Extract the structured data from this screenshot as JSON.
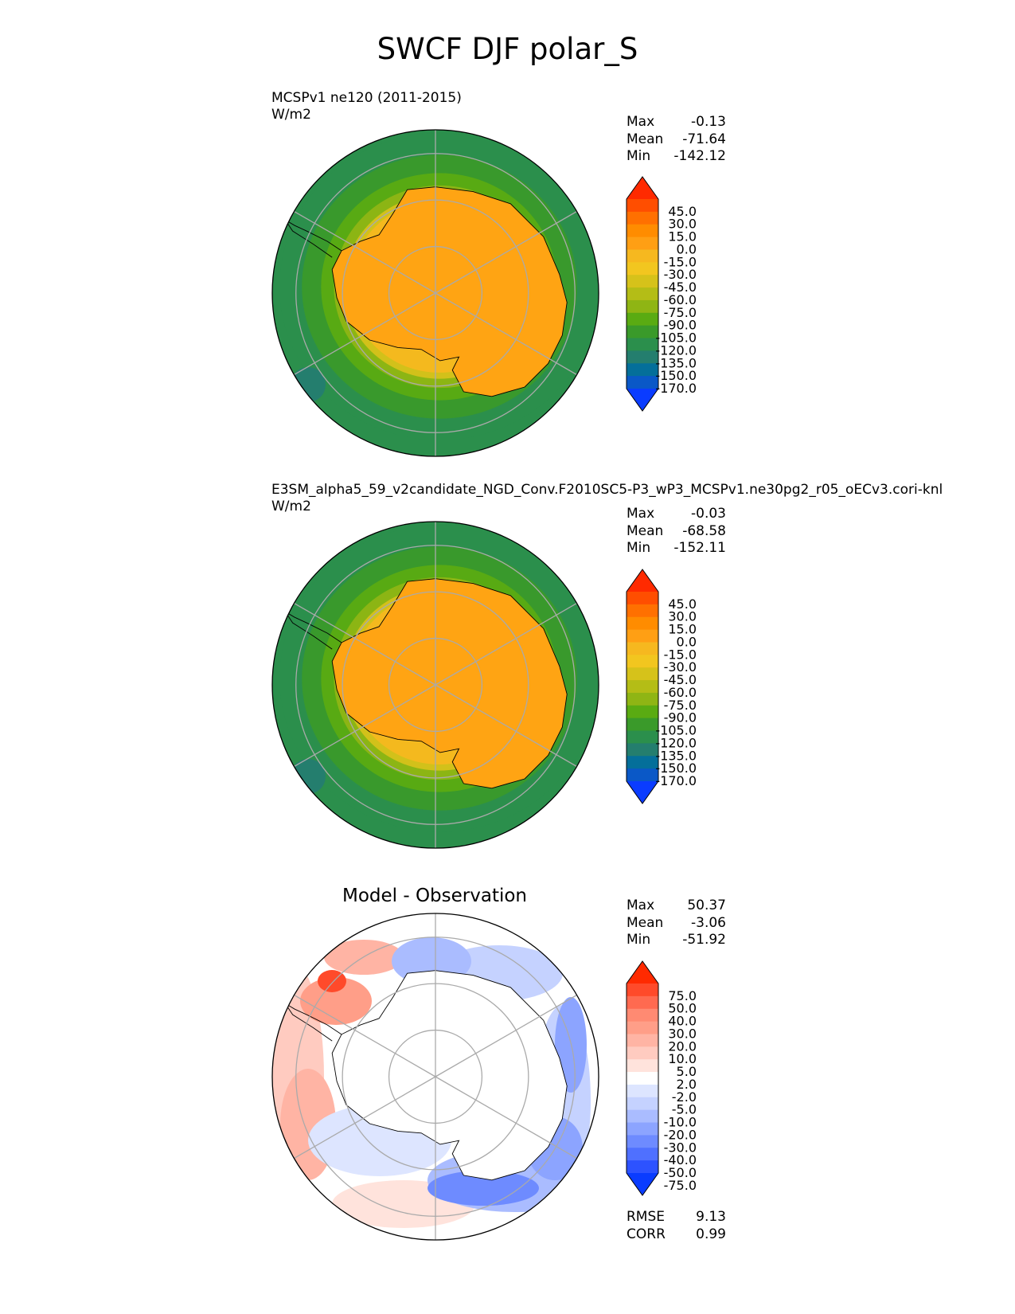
{
  "figure": {
    "title": "SWCF DJF polar_S"
  },
  "panels": [
    {
      "subtitle": "MCSPv1 ne120 (2011-2015)",
      "units": "W/m2",
      "stats": [
        {
          "label": "Max",
          "value": "-0.13"
        },
        {
          "label": "Mean",
          "value": "-71.64"
        },
        {
          "label": "Min",
          "value": "-142.12"
        }
      ]
    },
    {
      "subtitle": "E3SM_alpha5_59_v2candidate_NGD_Conv.F2010SC5-P3_wP3_MCSPv1.ne30pg2_r05_oECv3.cori-knl",
      "units": "W/m2",
      "stats": [
        {
          "label": "Max",
          "value": "-0.03"
        },
        {
          "label": "Mean",
          "value": "-68.58"
        },
        {
          "label": "Min",
          "value": "-152.11"
        }
      ]
    },
    {
      "title": "Model - Observation",
      "stats": [
        {
          "label": "Max",
          "value": "50.37"
        },
        {
          "label": "Mean",
          "value": "-3.06"
        },
        {
          "label": "Min",
          "value": "-51.92"
        }
      ],
      "metrics": [
        {
          "label": "RMSE",
          "value": "9.13"
        },
        {
          "label": "CORR",
          "value": "0.99"
        }
      ]
    }
  ],
  "chart_data": [
    {
      "type": "heatmap",
      "projection": "south polar stereographic",
      "title": "MCSPv1 ne120 (2011-2015)",
      "units": "W/m2",
      "colorbar_levels": [
        "45.0",
        "30.0",
        "15.0",
        "0.0",
        "-15.0",
        "-30.0",
        "-45.0",
        "-60.0",
        "-75.0",
        "-90.0",
        "-105.0",
        "-120.0",
        "-135.0",
        "-150.0",
        "-170.0"
      ],
      "colors": [
        "#ff2a00",
        "#ff4e00",
        "#ff7000",
        "#ff8c00",
        "#ff9f14",
        "#f6b81f",
        "#f2c61f",
        "#d6c21a",
        "#b4bd16",
        "#8fb514",
        "#5aab12",
        "#3a9a2a",
        "#2b8f4c",
        "#247e6e",
        "#046f9a",
        "#0a58c7",
        "#0a3cff"
      ],
      "stats": {
        "max": -0.13,
        "mean": -71.64,
        "min": -142.12
      }
    },
    {
      "type": "heatmap",
      "projection": "south polar stereographic",
      "title": "E3SM_alpha5_59_v2candidate_NGD_Conv.F2010SC5-P3_wP3_MCSPv1.ne30pg2_r05_oECv3.cori-knl",
      "units": "W/m2",
      "colorbar_levels": [
        "45.0",
        "30.0",
        "15.0",
        "0.0",
        "-15.0",
        "-30.0",
        "-45.0",
        "-60.0",
        "-75.0",
        "-90.0",
        "-105.0",
        "-120.0",
        "-135.0",
        "-150.0",
        "-170.0"
      ],
      "colors": [
        "#ff2a00",
        "#ff4e00",
        "#ff7000",
        "#ff8c00",
        "#ff9f14",
        "#f6b81f",
        "#f2c61f",
        "#d6c21a",
        "#b4bd16",
        "#8fb514",
        "#5aab12",
        "#3a9a2a",
        "#2b8f4c",
        "#247e6e",
        "#046f9a",
        "#0a58c7",
        "#0a3cff"
      ],
      "stats": {
        "max": -0.03,
        "mean": -68.58,
        "min": -152.11
      }
    },
    {
      "type": "heatmap",
      "projection": "south polar stereographic",
      "title": "Model - Observation",
      "colorbar_levels": [
        "75.0",
        "50.0",
        "40.0",
        "30.0",
        "20.0",
        "10.0",
        "5.0",
        "2.0",
        "-2.0",
        "-5.0",
        "-10.0",
        "-20.0",
        "-30.0",
        "-40.0",
        "-50.0",
        "-75.0"
      ],
      "colors": [
        "#ff2a00",
        "#ff4a2a",
        "#ff6a50",
        "#ff8a72",
        "#ff9e88",
        "#ffb4a4",
        "#ffcbc0",
        "#ffe3dc",
        "#ffffff",
        "#dde5ff",
        "#c5d2ff",
        "#aabcff",
        "#8ca4ff",
        "#6e8bff",
        "#4f70ff",
        "#2d52ff",
        "#0a3cff"
      ],
      "stats": {
        "max": 50.37,
        "mean": -3.06,
        "min": -51.92
      },
      "metrics": {
        "rmse": 9.13,
        "corr": 0.99
      }
    }
  ]
}
